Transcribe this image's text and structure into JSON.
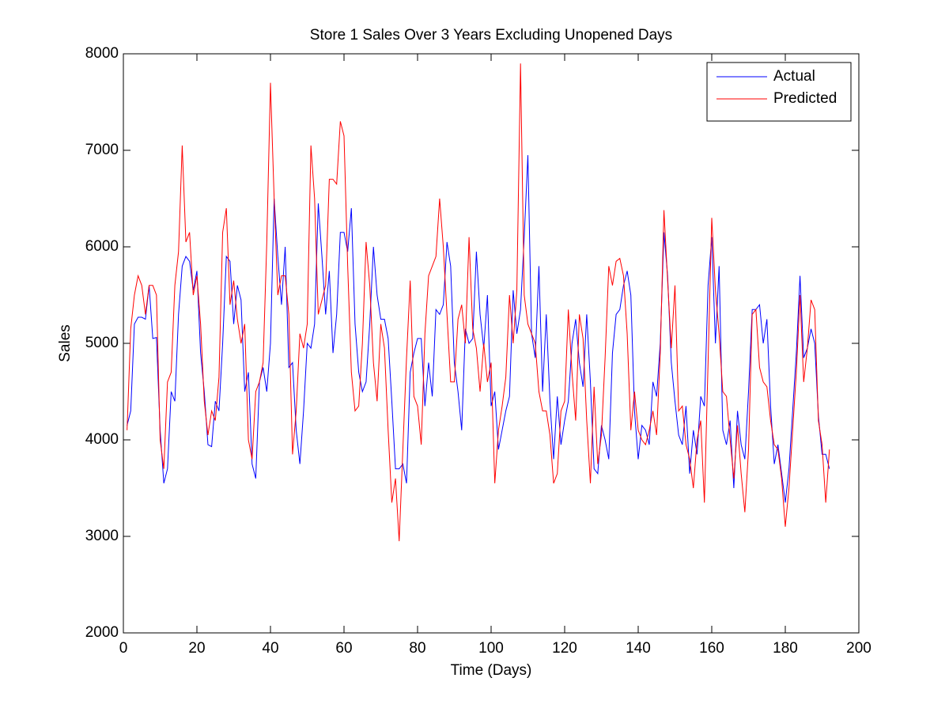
{
  "chart_data": {
    "type": "line",
    "title": "Store 1 Sales Over 3 Years Excluding Unopened Days",
    "x_label": "Time (Days)",
    "y_label": "Sales",
    "xlim": [
      0,
      200
    ],
    "xticks": [
      0,
      20,
      40,
      60,
      80,
      100,
      120,
      140,
      160,
      180,
      200
    ],
    "ylim": [
      2000,
      8000
    ],
    "yticks": [
      2000,
      3000,
      4000,
      5000,
      6000,
      7000,
      8000
    ],
    "legend": "upper right",
    "x": [
      1,
      2,
      3,
      4,
      5,
      6,
      7,
      8,
      9,
      10,
      11,
      12,
      13,
      14,
      15,
      16,
      17,
      18,
      19,
      20,
      21,
      22,
      23,
      24,
      25,
      26,
      27,
      28,
      29,
      30,
      31,
      32,
      33,
      34,
      35,
      36,
      37,
      38,
      39,
      40,
      41,
      42,
      43,
      44,
      45,
      46,
      47,
      48,
      49,
      50,
      51,
      52,
      53,
      54,
      55,
      56,
      57,
      58,
      59,
      60,
      61,
      62,
      63,
      64,
      65,
      66,
      67,
      68,
      69,
      70,
      71,
      72,
      73,
      74,
      75,
      76,
      77,
      78,
      79,
      80,
      81,
      82,
      83,
      84,
      85,
      86,
      87,
      88,
      89,
      90,
      91,
      92,
      93,
      94,
      95,
      96,
      97,
      98,
      99,
      100,
      101,
      102,
      103,
      104,
      105,
      106,
      107,
      108,
      109,
      110,
      111,
      112,
      113,
      114,
      115,
      116,
      117,
      118,
      119,
      120,
      121,
      122,
      123,
      124,
      125,
      126,
      127,
      128,
      129,
      130,
      131,
      132,
      133,
      134,
      135,
      136,
      137,
      138,
      139,
      140,
      141,
      142,
      143,
      144,
      145,
      146,
      147,
      148,
      149,
      150,
      151,
      152,
      153,
      154,
      155,
      156,
      157,
      158,
      159,
      160,
      161,
      162,
      163,
      164,
      165,
      166,
      167,
      168,
      169,
      170,
      171,
      172,
      173,
      174,
      175,
      176,
      177,
      178,
      179,
      180,
      181,
      182,
      183,
      184,
      185,
      186,
      187,
      188,
      189,
      190,
      191,
      192
    ],
    "series": [
      {
        "name": "Actual",
        "color": "#0000ff",
        "values": [
          4150,
          4300,
          5200,
          5270,
          5270,
          5250,
          5600,
          5050,
          5060,
          4100,
          3550,
          3700,
          4500,
          4400,
          5300,
          5800,
          5900,
          5850,
          5550,
          5750,
          4900,
          4500,
          3950,
          3930,
          4400,
          4300,
          5000,
          5900,
          5850,
          5200,
          5600,
          5450,
          4500,
          4700,
          3750,
          3600,
          4600,
          4750,
          4500,
          5000,
          6500,
          5900,
          5400,
          6000,
          4750,
          4800,
          4100,
          3750,
          4300,
          5000,
          4950,
          5200,
          6450,
          5900,
          5300,
          5750,
          4900,
          5300,
          6150,
          6150,
          5950,
          6400,
          5200,
          4700,
          4500,
          4600,
          5200,
          6000,
          5500,
          5250,
          5250,
          5050,
          4400,
          3700,
          3700,
          3750,
          3550,
          4700,
          4900,
          5050,
          5050,
          4350,
          4800,
          4450,
          5350,
          5300,
          5400,
          6050,
          5800,
          4800,
          4500,
          4100,
          5150,
          5000,
          5050,
          5950,
          5300,
          4950,
          5500,
          4350,
          4500,
          3900,
          4100,
          4300,
          4450,
          5550,
          5100,
          5350,
          6100,
          6950,
          5100,
          4850,
          5800,
          4500,
          5300,
          4400,
          3800,
          4450,
          3950,
          4200,
          4400,
          5000,
          5250,
          4800,
          4550,
          5300,
          4600,
          3700,
          3650,
          4150,
          4000,
          3800,
          4900,
          5300,
          5350,
          5600,
          5750,
          5500,
          4300,
          3800,
          4150,
          4100,
          3950,
          4600,
          4450,
          5000,
          6150,
          5700,
          4800,
          4400,
          4050,
          3950,
          4350,
          3650,
          4100,
          3850,
          4450,
          4350,
          5600,
          6100,
          5000,
          5800,
          4100,
          3950,
          4200,
          3500,
          4300,
          3950,
          3800,
          4500,
          5350,
          5350,
          5400,
          5000,
          5250,
          4350,
          3750,
          3950,
          3650,
          3350,
          3700,
          4300,
          4900,
          5700,
          4850,
          4950,
          5150,
          5000,
          4250,
          3850,
          3850,
          3700
        ]
      },
      {
        "name": "Predicted",
        "color": "#ff0000",
        "values": [
          4100,
          5150,
          5500,
          5700,
          5600,
          5300,
          5600,
          5600,
          5500,
          4000,
          3700,
          4600,
          4700,
          5600,
          5950,
          7050,
          6050,
          6150,
          5500,
          5700,
          5200,
          4400,
          4050,
          4300,
          4200,
          4650,
          6150,
          6400,
          5400,
          5650,
          5250,
          5000,
          5200,
          4000,
          3800,
          4500,
          4600,
          4800,
          6050,
          7700,
          6500,
          5500,
          5700,
          5700,
          5300,
          3850,
          4300,
          5100,
          4950,
          5200,
          7050,
          6500,
          5300,
          5450,
          5600,
          6700,
          6700,
          6650,
          7300,
          7150,
          5800,
          4700,
          4300,
          4350,
          5000,
          6050,
          5600,
          4800,
          4400,
          5200,
          4950,
          4100,
          3350,
          3600,
          2950,
          3900,
          4850,
          5650,
          4450,
          4350,
          3950,
          5100,
          5700,
          5800,
          5900,
          6500,
          6000,
          5300,
          4600,
          4600,
          5250,
          5400,
          5000,
          6100,
          5150,
          4950,
          4500,
          5000,
          4600,
          4800,
          3550,
          4100,
          4350,
          4650,
          5500,
          5000,
          5550,
          7900,
          5500,
          5200,
          5100,
          5000,
          4500,
          4300,
          4300,
          4050,
          3550,
          3650,
          4300,
          4400,
          5350,
          4700,
          4200,
          5300,
          5050,
          4200,
          3550,
          4550,
          3750,
          4050,
          4850,
          5800,
          5600,
          5850,
          5880,
          5700,
          5100,
          4100,
          4500,
          4100,
          4000,
          3950,
          4100,
          4300,
          4050,
          4900,
          6380,
          5650,
          4950,
          5600,
          4300,
          4350,
          3950,
          3800,
          3500,
          4000,
          4200,
          3350,
          4800,
          6300,
          5550,
          5100,
          4500,
          4450,
          4000,
          3600,
          4150,
          3650,
          3250,
          3900,
          5300,
          5350,
          4750,
          4600,
          4550,
          4200,
          3950,
          3900,
          3600,
          3100,
          3500,
          4100,
          4700,
          5500,
          4600,
          4950,
          5450,
          5350,
          4200,
          3950,
          3350,
          3900
        ]
      }
    ]
  }
}
